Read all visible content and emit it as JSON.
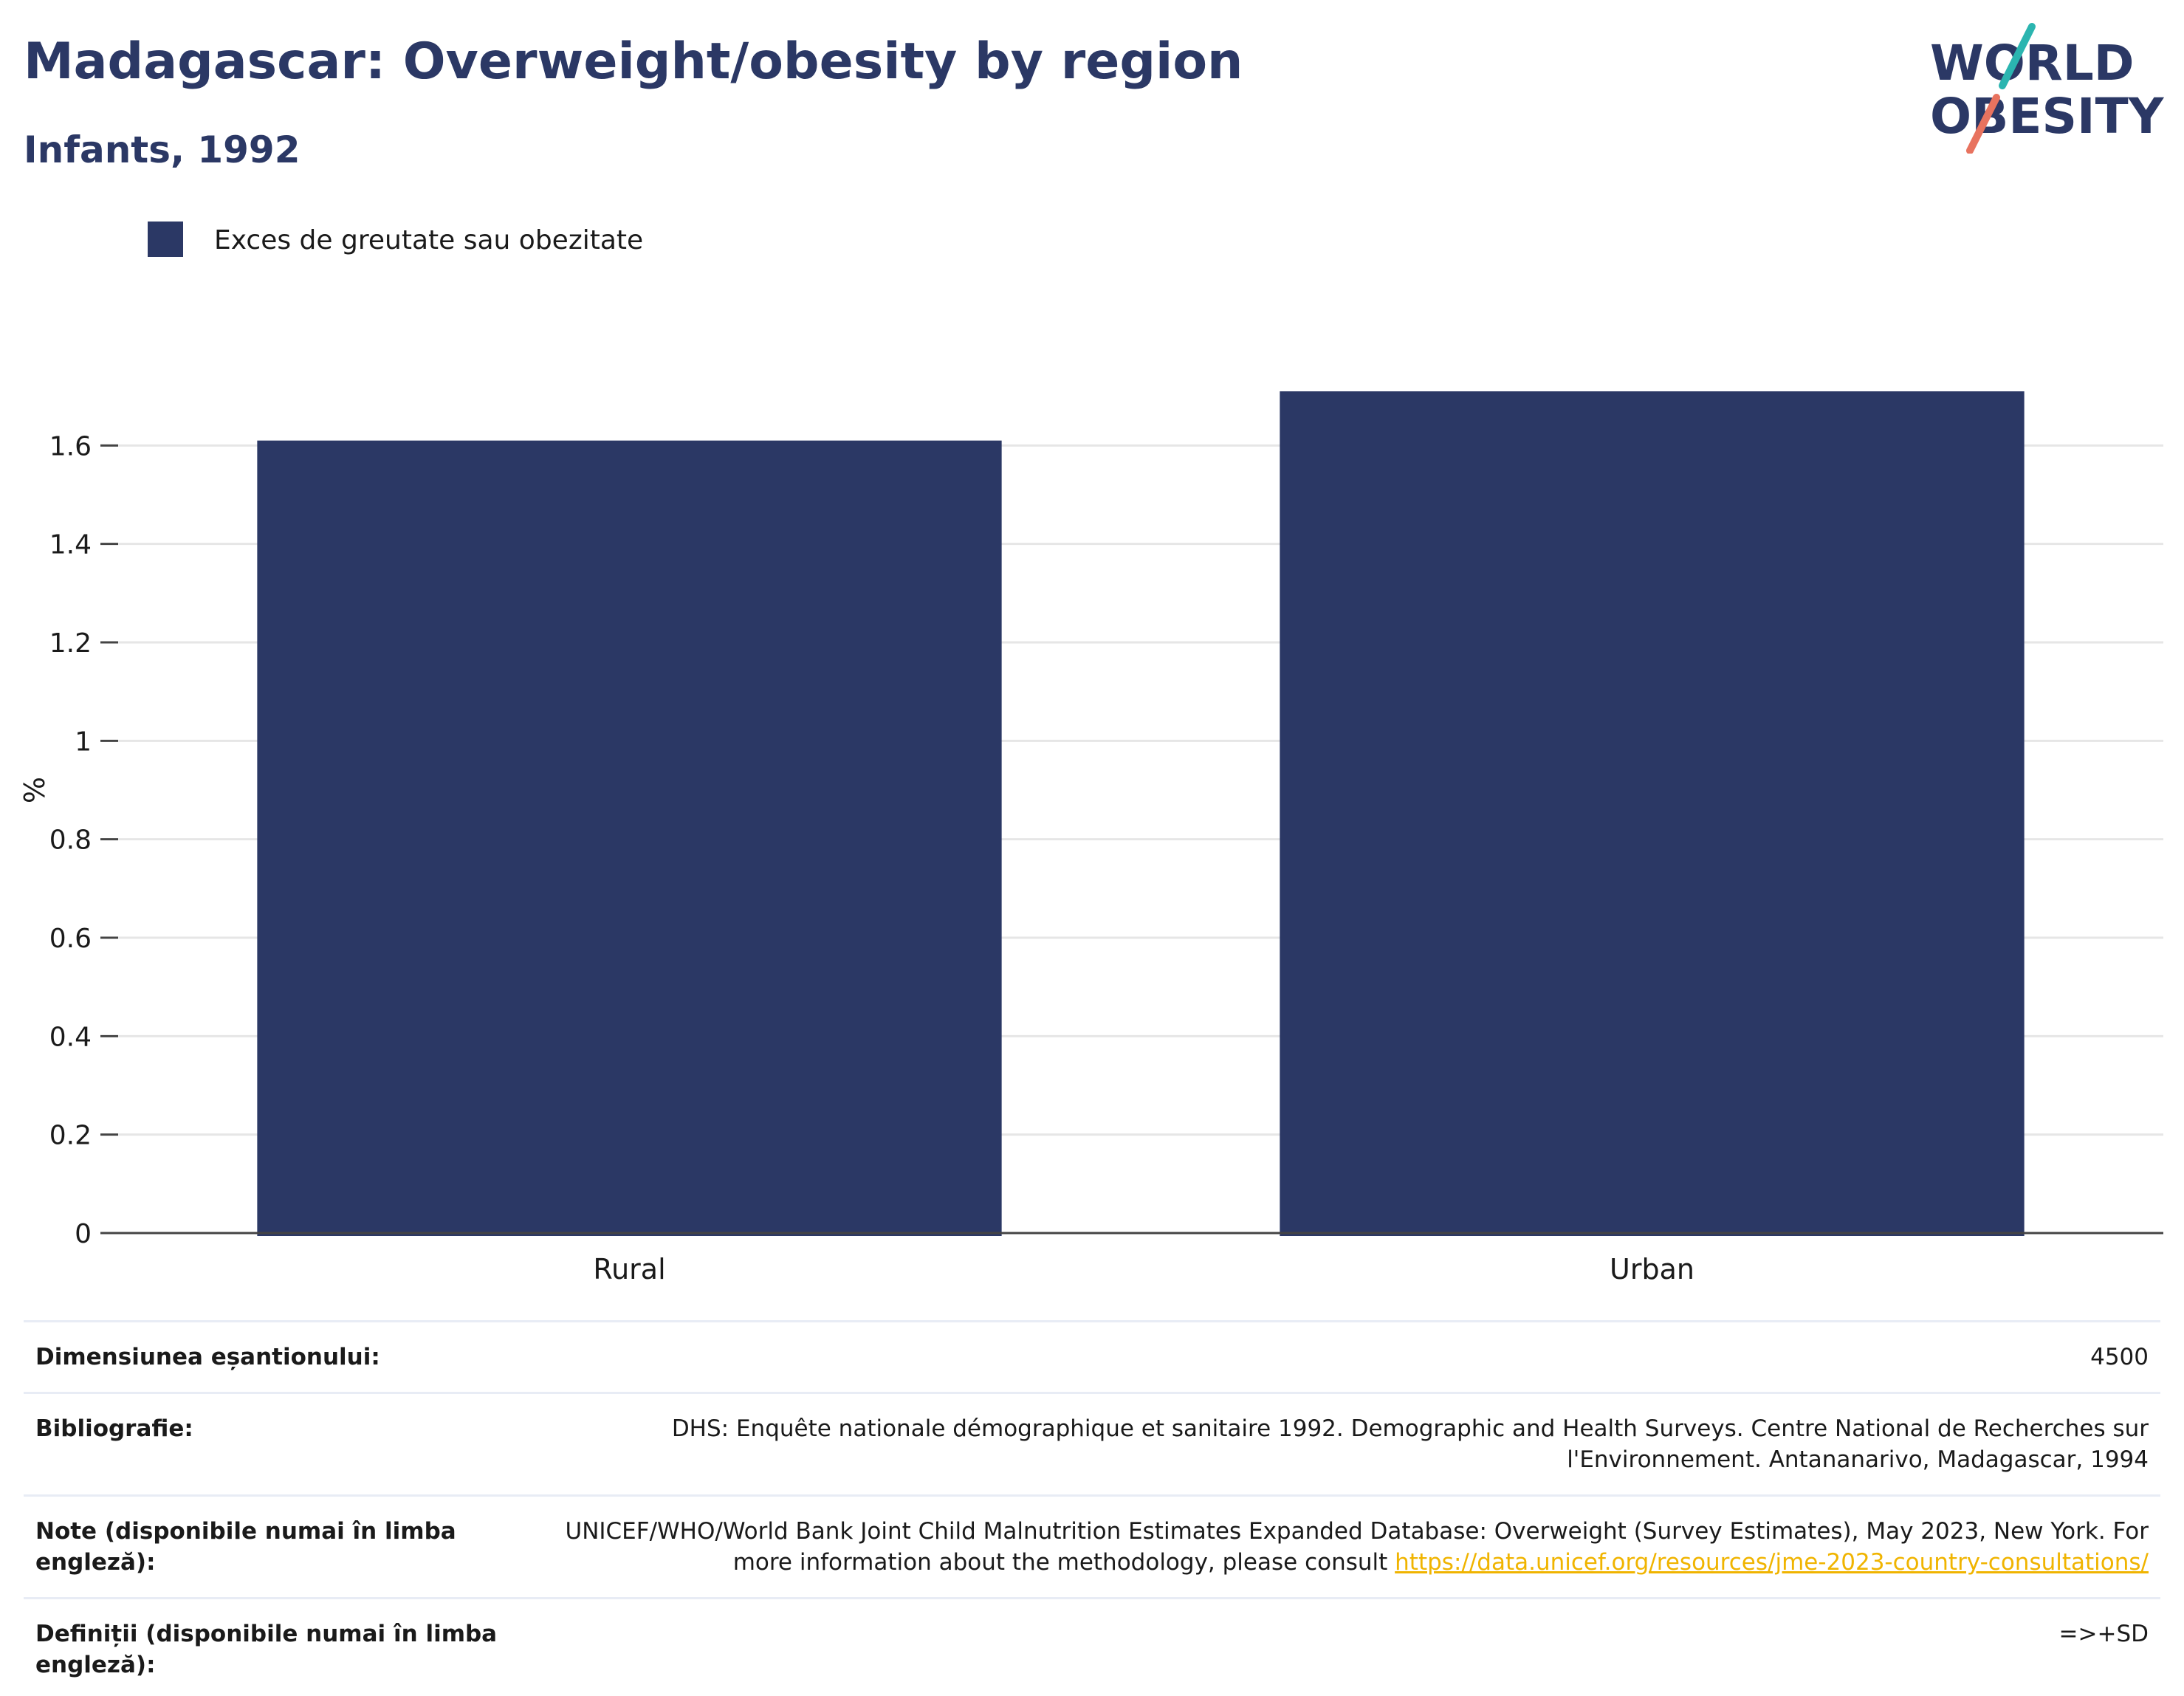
{
  "header": {
    "title": "Madagascar: Overweight/obesity by region",
    "subtitle": "Infants, 1992"
  },
  "logo": {
    "line1": "WORLD",
    "line2": "OBESITY",
    "colors": {
      "text": "#2b3865",
      "teal": "#2bb5b0",
      "coral": "#e8735f"
    }
  },
  "chart_data": {
    "type": "bar",
    "categories": [
      "Rural",
      "Urban"
    ],
    "series": [
      {
        "name": "Exces de greutate sau obezitate",
        "values": [
          1.61,
          1.71
        ],
        "color": "#2b3865"
      }
    ],
    "title": "Madagascar: Overweight/obesity by region",
    "subtitle": "Infants, 1992",
    "xlabel": "",
    "ylabel": "%",
    "ylim": [
      0,
      1.8
    ],
    "yticks": [
      0,
      0.2,
      0.4,
      0.6,
      0.8,
      1,
      1.2,
      1.4,
      1.6
    ],
    "ytick_labels": [
      "0",
      "0.2",
      "0.4",
      "0.6",
      "0.8",
      "1",
      "1.2",
      "1.4",
      "1.6"
    ],
    "grid": true,
    "legend": "top-left"
  },
  "footer": {
    "rows": [
      {
        "label": "Dimensiunea eșantionului:",
        "value": "4500"
      },
      {
        "label": "Bibliografie:",
        "value": "DHS: Enquête nationale démographique et sanitaire 1992. Demographic and Health Surveys. Centre National de Recherches sur l'Environnement. Antananarivo, Madagascar, 1994"
      },
      {
        "label": "Note (disponibile numai în limba engleză):",
        "value": "UNICEF/WHO/World Bank Joint Child Malnutrition Estimates Expanded Database: Overweight (Survey Estimates), May 2023, New York. For more information about the methodology, please consult",
        "link": "https://data.unicef.org/resources/jme-2023-country-consultations/"
      },
      {
        "label": "Definiții (disponibile numai în limba engleză):",
        "value": "=>+SD"
      }
    ]
  }
}
